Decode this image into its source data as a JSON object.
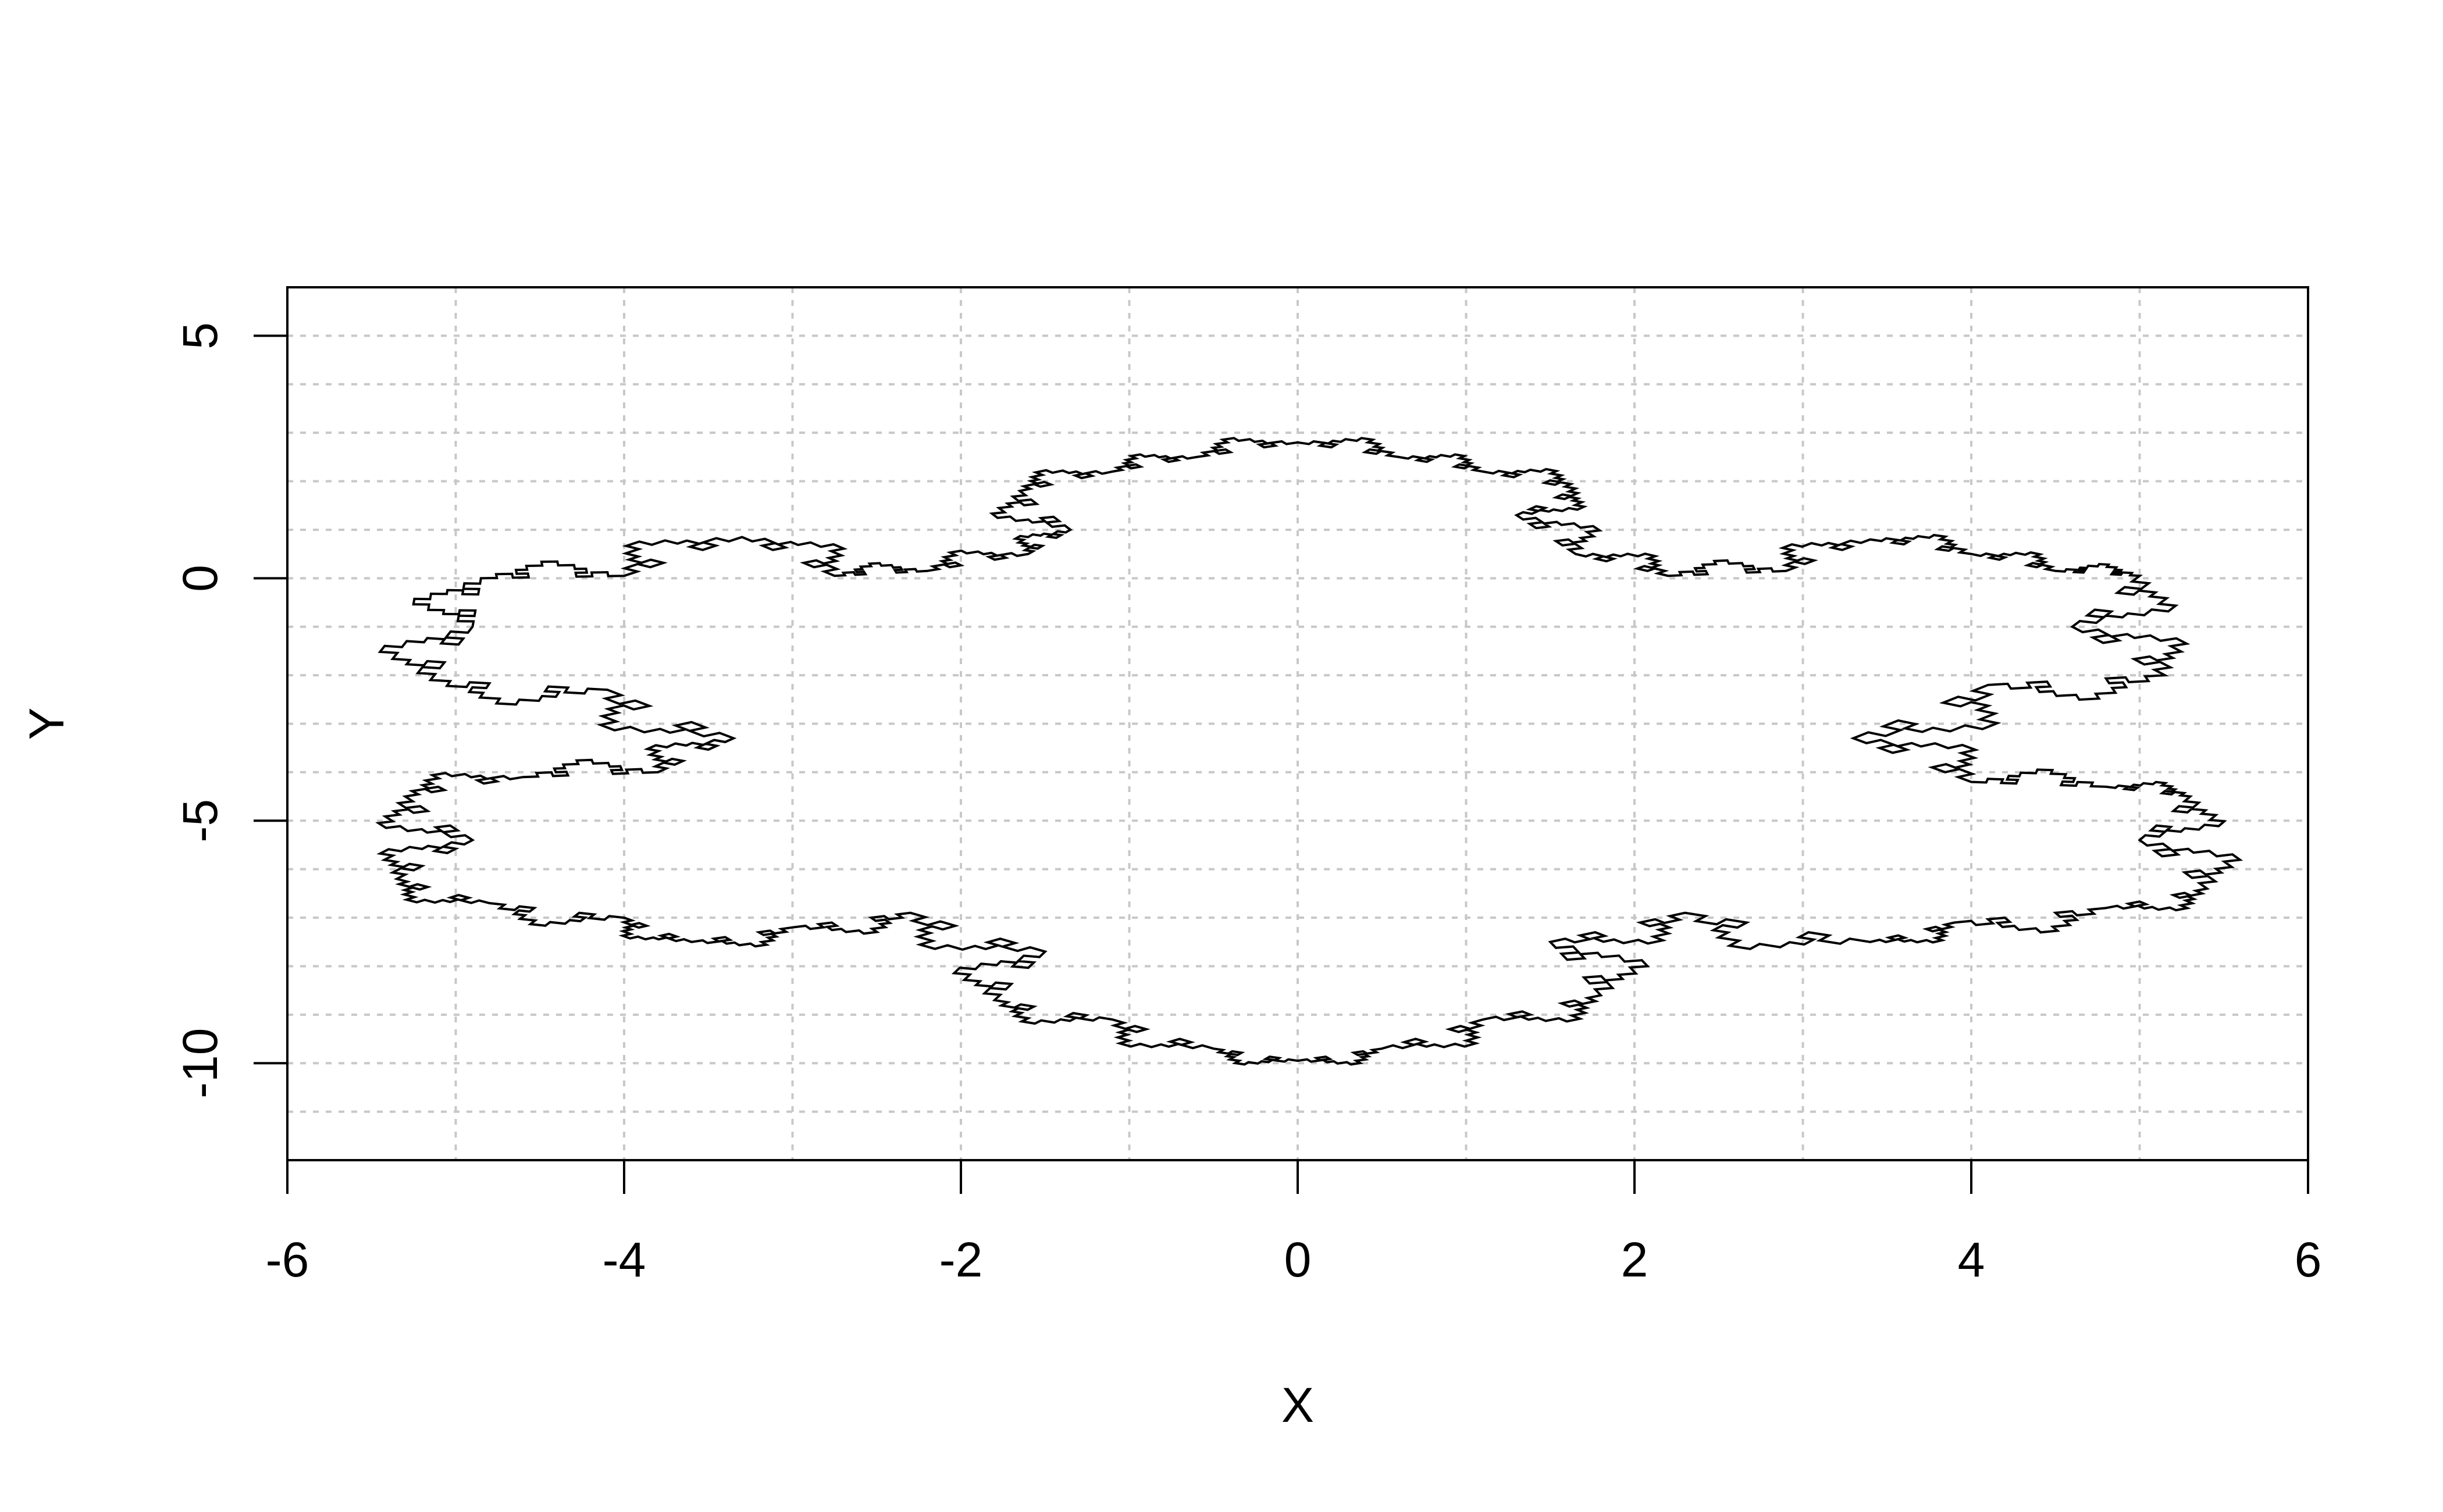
{
  "chart_data": {
    "type": "line",
    "title": "",
    "xlabel": "X",
    "ylabel": "Y",
    "xlim": [
      -6,
      6
    ],
    "ylim": [
      -12,
      6
    ],
    "x_ticks": [
      -6,
      -4,
      -2,
      0,
      2,
      4,
      6
    ],
    "x_tick_labels": [
      "-6",
      "-4",
      "-2",
      "0",
      "2",
      "4",
      "6"
    ],
    "y_ticks": [
      -10,
      -5,
      0,
      5
    ],
    "y_tick_labels": [
      "-10",
      "-5",
      "0",
      "5"
    ],
    "grid": true,
    "grid_x": [
      -5,
      -4,
      -3,
      -2,
      -1,
      0,
      1,
      2,
      3,
      4,
      5
    ],
    "grid_y": [
      -11,
      -10,
      -9,
      -8,
      -7,
      -6,
      -5,
      -4,
      -3,
      -2,
      -1,
      0,
      1,
      2,
      3,
      4,
      5
    ],
    "line_color": "#000000",
    "grid_color": "#c8c8c8",
    "series": [
      {
        "outline": [
          [
            -0.6,
            2.5
          ],
          [
            0.0,
            2.8
          ],
          [
            0.6,
            2.5
          ],
          [
            1.1,
            2.2
          ],
          [
            1.65,
            1.85
          ],
          [
            1.3,
            1.3
          ],
          [
            1.65,
            0.5
          ],
          [
            2.2,
            0.05
          ],
          [
            2.9,
            0.15
          ],
          [
            3.4,
            0.8
          ],
          [
            4.0,
            0.5
          ],
          [
            4.5,
            0.15
          ],
          [
            5.0,
            0.05
          ],
          [
            4.6,
            -1.0
          ],
          [
            5.15,
            -2.0
          ],
          [
            4.1,
            -2.2
          ],
          [
            3.3,
            -3.3
          ],
          [
            4.0,
            -4.2
          ],
          [
            4.8,
            -4.3
          ],
          [
            5.3,
            -4.5
          ],
          [
            5.0,
            -5.4
          ],
          [
            5.4,
            -6.4
          ],
          [
            4.8,
            -6.8
          ],
          [
            3.9,
            -7.1
          ],
          [
            3.4,
            -7.5
          ],
          [
            2.3,
            -6.9
          ],
          [
            1.5,
            -7.5
          ],
          [
            1.8,
            -8.6
          ],
          [
            1.1,
            -9.1
          ],
          [
            0.5,
            -9.7
          ],
          [
            0.0,
            -9.95
          ],
          [
            -0.5,
            -9.7
          ],
          [
            -1.1,
            -9.1
          ],
          [
            -1.8,
            -8.7
          ],
          [
            -1.5,
            -7.7
          ],
          [
            -2.3,
            -6.9
          ],
          [
            -3.0,
            -7.2
          ],
          [
            -3.6,
            -7.5
          ],
          [
            -4.0,
            -7.0
          ],
          [
            -4.8,
            -6.7
          ],
          [
            -5.35,
            -6.2
          ],
          [
            -4.9,
            -5.4
          ],
          [
            -5.3,
            -4.5
          ],
          [
            -4.6,
            -4.1
          ],
          [
            -3.8,
            -4.0
          ],
          [
            -3.35,
            -3.3
          ],
          [
            -4.1,
            -2.3
          ],
          [
            -5.15,
            -2.1
          ],
          [
            -4.9,
            -1.0
          ],
          [
            -4.85,
            0.0
          ],
          [
            -4.0,
            0.05
          ],
          [
            -3.3,
            0.85
          ],
          [
            -2.75,
            0.05
          ],
          [
            -2.2,
            0.15
          ],
          [
            -1.6,
            0.5
          ],
          [
            -1.35,
            1.0
          ],
          [
            -1.65,
            1.8
          ],
          [
            -1.1,
            2.2
          ]
        ]
      }
    ]
  }
}
